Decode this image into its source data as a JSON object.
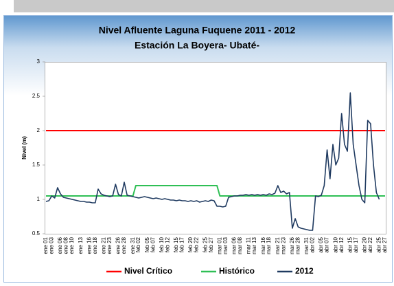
{
  "chart_data": {
    "type": "line",
    "title": "Nivel Afluente Laguna Fuquene 2011 - 2012",
    "subtitle": "Estación La Boyera- Ubaté-",
    "y_label": "Nivel (m)",
    "ylim": [
      0.5,
      3
    ],
    "yticks": [
      0.5,
      1,
      1.5,
      2,
      2.5,
      3
    ],
    "grid": false,
    "legend": "bottom",
    "categories": [
      "ene 01",
      null,
      "ene 03",
      null,
      null,
      "ene 06",
      null,
      "ene 08",
      null,
      "ene 10",
      null,
      null,
      "ene 13",
      null,
      null,
      "ene 16",
      null,
      "ene 18",
      null,
      null,
      "ene 21",
      null,
      "ene 23",
      null,
      null,
      "ene 26",
      null,
      "ene 28",
      null,
      null,
      "ene 31",
      null,
      "feb 02",
      null,
      null,
      "feb 05",
      null,
      "feb 07",
      null,
      null,
      "feb 10",
      null,
      "feb 12",
      null,
      null,
      "feb 15",
      null,
      "feb 17",
      null,
      null,
      "feb 20",
      null,
      "feb 22",
      null,
      null,
      "feb 25",
      null,
      "feb 27",
      null,
      null,
      "mar 01",
      null,
      "mar 03",
      null,
      null,
      "mar 06",
      null,
      "mar 08",
      null,
      null,
      "mar 11",
      null,
      "mar 13",
      null,
      null,
      "mar 16",
      null,
      "mar 18",
      null,
      null,
      "mar 21",
      null,
      "mar 23",
      null,
      null,
      "mar 26",
      null,
      "mar 28",
      null,
      null,
      "mar 31",
      null,
      "abr 02",
      null,
      null,
      "abr 05",
      null,
      "abr 07",
      null,
      null,
      "abr 10",
      null,
      "abr 12",
      null,
      null,
      "abr 15",
      null,
      "abr 17",
      null,
      null,
      "abr 20",
      null,
      "abr 22",
      null,
      null,
      "abr 25",
      null,
      "abr 27"
    ],
    "series": [
      {
        "name": "Nivel Crítico",
        "color": "#ff0000",
        "values": [
          2,
          2,
          2,
          2,
          2,
          2,
          2,
          2,
          2,
          2,
          2,
          2,
          2,
          2,
          2,
          2,
          2,
          2,
          2,
          2,
          2,
          2,
          2,
          2,
          2,
          2,
          2,
          2,
          2,
          2,
          2,
          2,
          2,
          2,
          2,
          2,
          2,
          2,
          2,
          2,
          2,
          2,
          2,
          2,
          2,
          2,
          2,
          2,
          2,
          2,
          2,
          2,
          2,
          2,
          2,
          2,
          2,
          2,
          2,
          2,
          2,
          2,
          2,
          2,
          2,
          2,
          2,
          2,
          2,
          2,
          2,
          2,
          2,
          2,
          2,
          2,
          2,
          2,
          2,
          2,
          2,
          2,
          2,
          2,
          2,
          2,
          2,
          2,
          2,
          2,
          2,
          2,
          2,
          2,
          2,
          2,
          2,
          2,
          2,
          2,
          2,
          2,
          2,
          2,
          2,
          2,
          2,
          2,
          2,
          2,
          2,
          2,
          2,
          2,
          2,
          2,
          2,
          2
        ]
      },
      {
        "name": "Histórico",
        "color": "#2fbf55",
        "values": [
          1.05,
          1.05,
          1.05,
          1.05,
          1.05,
          1.05,
          1.05,
          1.05,
          1.05,
          1.05,
          1.05,
          1.05,
          1.05,
          1.05,
          1.05,
          1.05,
          1.05,
          1.05,
          1.05,
          1.05,
          1.05,
          1.05,
          1.05,
          1.05,
          1.05,
          1.05,
          1.05,
          1.05,
          1.05,
          1.05,
          1.05,
          1.2,
          1.2,
          1.2,
          1.2,
          1.2,
          1.2,
          1.2,
          1.2,
          1.2,
          1.2,
          1.2,
          1.2,
          1.2,
          1.2,
          1.2,
          1.2,
          1.2,
          1.2,
          1.2,
          1.2,
          1.2,
          1.2,
          1.2,
          1.2,
          1.2,
          1.2,
          1.2,
          1.2,
          1.2,
          1.05,
          1.05,
          1.05,
          1.05,
          1.05,
          1.05,
          1.05,
          1.05,
          1.05,
          1.05,
          1.05,
          1.05,
          1.05,
          1.05,
          1.05,
          1.05,
          1.05,
          1.05,
          1.05,
          1.05,
          1.05,
          1.05,
          1.05,
          1.05,
          1.05,
          1.05,
          1.05,
          1.05,
          1.05,
          1.05,
          1.05,
          1.05,
          1.05,
          1.05,
          1.05,
          1.05,
          1.05,
          1.05,
          1.05,
          1.05,
          1.05,
          1.05,
          1.05,
          1.05,
          1.05,
          1.05,
          1.05,
          1.05,
          1.05,
          1.05,
          1.05,
          1.05,
          1.05,
          1.05,
          1.05,
          1.05,
          1.05,
          1.05
        ]
      },
      {
        "name": "2012",
        "color": "#1f3a60",
        "values": [
          0.97,
          0.98,
          1.05,
          1.02,
          1.17,
          1.08,
          1.03,
          1.02,
          1.01,
          1.0,
          0.99,
          0.98,
          0.97,
          0.97,
          0.96,
          0.96,
          0.95,
          0.95,
          1.15,
          1.08,
          1.06,
          1.05,
          1.04,
          1.05,
          1.22,
          1.07,
          1.05,
          1.25,
          1.06,
          1.05,
          1.04,
          1.03,
          1.02,
          1.03,
          1.04,
          1.03,
          1.02,
          1.01,
          1.02,
          1.01,
          1.0,
          1.01,
          1.0,
          0.99,
          0.99,
          0.98,
          0.99,
          0.98,
          0.98,
          0.97,
          0.98,
          0.97,
          0.98,
          0.96,
          0.97,
          0.98,
          0.97,
          0.99,
          0.98,
          0.9,
          0.9,
          0.89,
          0.9,
          1.03,
          1.04,
          1.05,
          1.05,
          1.06,
          1.06,
          1.07,
          1.06,
          1.07,
          1.06,
          1.07,
          1.06,
          1.07,
          1.06,
          1.08,
          1.07,
          1.09,
          1.2,
          1.1,
          1.12,
          1.08,
          1.1,
          0.58,
          0.72,
          0.6,
          0.58,
          0.57,
          0.56,
          0.55,
          0.55,
          1.05,
          1.04,
          1.06,
          1.2,
          1.72,
          1.3,
          1.8,
          1.5,
          1.6,
          2.25,
          1.8,
          1.7,
          2.55,
          1.8,
          1.5,
          1.2,
          1.0,
          0.95,
          2.15,
          2.1,
          1.5,
          1.1,
          1.0,
          null,
          null
        ]
      }
    ]
  }
}
